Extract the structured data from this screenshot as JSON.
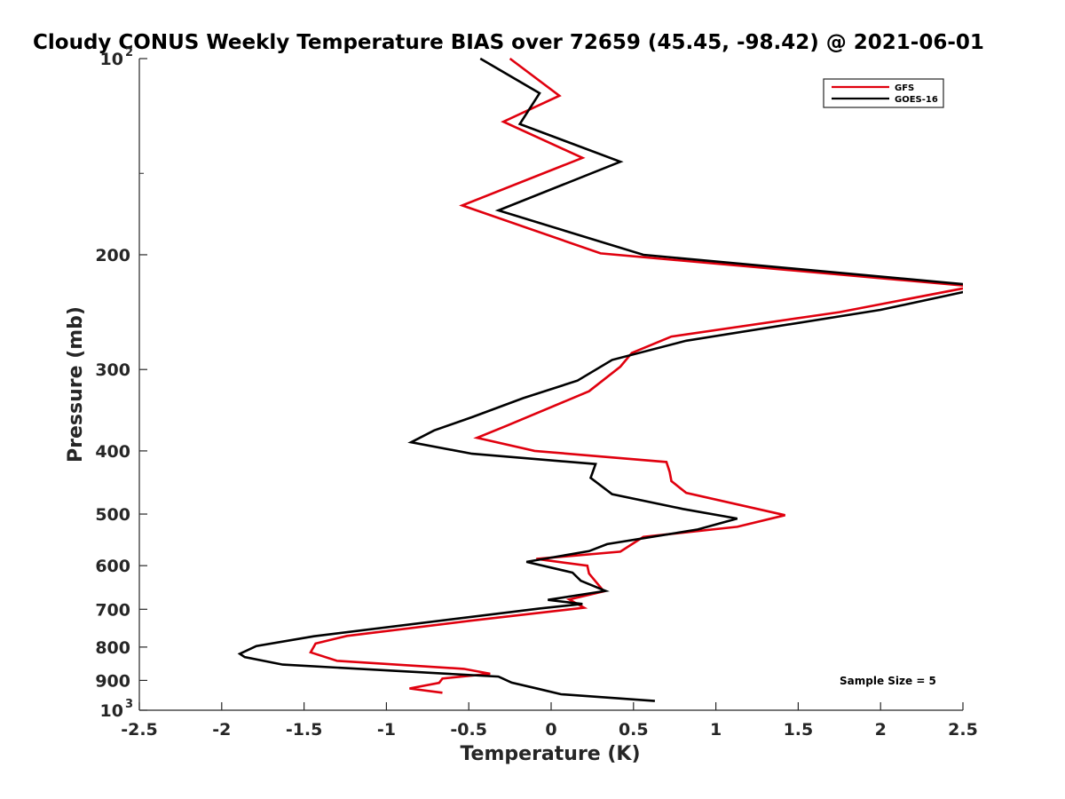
{
  "chart_data": {
    "type": "line",
    "title": "Cloudy CONUS Weekly Temperature BIAS over 72659 (45.45, -98.42) @ 2021-06-01",
    "xlabel": "Temperature (K)",
    "ylabel": "Pressure (mb)",
    "xlim": [
      -2.5,
      2.5
    ],
    "ylim": [
      100,
      1000
    ],
    "y_scale": "log",
    "y_reversed": true,
    "x_ticks": [
      "-2.5",
      "-2",
      "-1.5",
      "-1",
      "-0.5",
      "0",
      "0.5",
      "1",
      "1.5",
      "2",
      "2.5"
    ],
    "y_ticks": [
      {
        "value": 100,
        "label": "10",
        "sup": "2"
      },
      {
        "value": 200,
        "label": "200"
      },
      {
        "value": 300,
        "label": "300"
      },
      {
        "value": 400,
        "label": "400"
      },
      {
        "value": 500,
        "label": "500"
      },
      {
        "value": 600,
        "label": "600"
      },
      {
        "value": 700,
        "label": "700"
      },
      {
        "value": 800,
        "label": "800"
      },
      {
        "value": 900,
        "label": "900"
      },
      {
        "value": 1000,
        "label": "10",
        "sup": "3"
      }
    ],
    "legend_position": "top-right",
    "grid": false,
    "annotation": "Sample Size = 5",
    "series": [
      {
        "name": "GFS",
        "color": "#e0000e",
        "points": [
          [
            -0.25,
            100
          ],
          [
            0.05,
            114
          ],
          [
            -0.29,
            125
          ],
          [
            0.19,
            142
          ],
          [
            -0.54,
            168
          ],
          [
            0.3,
            199
          ],
          [
            2.51,
            223
          ],
          [
            2.51,
            225
          ],
          [
            1.75,
            245
          ],
          [
            0.73,
            267
          ],
          [
            0.49,
            283
          ],
          [
            0.42,
            297
          ],
          [
            0.23,
            324
          ],
          [
            -0.27,
            366
          ],
          [
            -0.45,
            382
          ],
          [
            -0.1,
            400
          ],
          [
            0.7,
            416
          ],
          [
            0.72,
            431
          ],
          [
            0.73,
            445
          ],
          [
            0.82,
            464
          ],
          [
            1.42,
            502
          ],
          [
            1.13,
            523
          ],
          [
            0.56,
            542
          ],
          [
            0.42,
            571
          ],
          [
            -0.09,
            586
          ],
          [
            0.22,
            600
          ],
          [
            0.23,
            617
          ],
          [
            0.32,
            657
          ],
          [
            0.11,
            676
          ],
          [
            0.2,
            696
          ],
          [
            -0.49,
            729
          ],
          [
            -1.24,
            769
          ],
          [
            -1.43,
            790
          ],
          [
            -1.46,
            815
          ],
          [
            -1.3,
            840
          ],
          [
            -0.53,
            864
          ],
          [
            -0.37,
            879
          ],
          [
            -0.66,
            894
          ],
          [
            -0.68,
            908
          ],
          [
            -0.86,
            926
          ],
          [
            -0.66,
            940
          ]
        ]
      },
      {
        "name": "GOES-16",
        "color": "#000000",
        "points": [
          [
            -0.43,
            100
          ],
          [
            -0.07,
            113
          ],
          [
            -0.19,
            126
          ],
          [
            0.42,
            144
          ],
          [
            -0.32,
            171
          ],
          [
            0.56,
            200
          ],
          [
            2.51,
            222
          ],
          [
            2.51,
            228
          ],
          [
            2.0,
            243
          ],
          [
            0.82,
            271
          ],
          [
            0.37,
            290
          ],
          [
            0.16,
            312
          ],
          [
            -0.17,
            332
          ],
          [
            -0.48,
            355
          ],
          [
            -0.71,
            372
          ],
          [
            -0.85,
            388
          ],
          [
            -0.48,
            404
          ],
          [
            0.27,
            419
          ],
          [
            0.24,
            440
          ],
          [
            0.37,
            466
          ],
          [
            0.8,
            491
          ],
          [
            1.13,
            508
          ],
          [
            0.89,
            528
          ],
          [
            0.34,
            556
          ],
          [
            0.23,
            570
          ],
          [
            -0.15,
            592
          ],
          [
            0.13,
            615
          ],
          [
            0.18,
            633
          ],
          [
            0.33,
            656
          ],
          [
            -0.02,
            677
          ],
          [
            0.19,
            687
          ],
          [
            -0.07,
            698
          ],
          [
            -1.44,
            770
          ],
          [
            -1.79,
            797
          ],
          [
            -1.89,
            819
          ],
          [
            -1.86,
            829
          ],
          [
            -1.63,
            851
          ],
          [
            -0.32,
            888
          ],
          [
            -0.24,
            907
          ],
          [
            -0.08,
            927
          ],
          [
            0.06,
            945
          ],
          [
            0.63,
            968
          ]
        ]
      }
    ]
  }
}
